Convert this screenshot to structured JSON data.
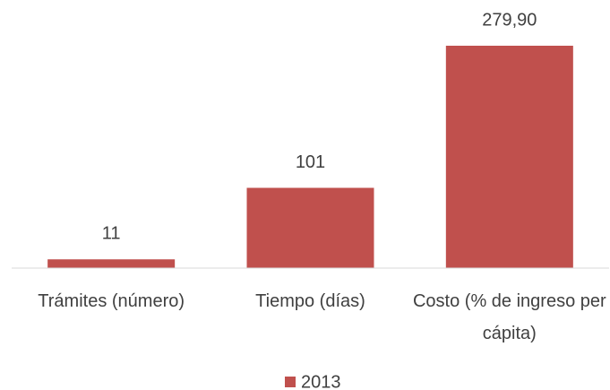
{
  "chart_data": {
    "type": "bar",
    "categories": [
      "Trámites (número)",
      "Tiempo (días)",
      "Costo (% de ingreso per cápita)"
    ],
    "series": [
      {
        "name": "2013",
        "color": "#c0504d",
        "values": [
          11,
          101,
          279.9
        ],
        "value_labels": [
          "11",
          "101",
          "279,90"
        ]
      }
    ],
    "legend": "bottom"
  }
}
